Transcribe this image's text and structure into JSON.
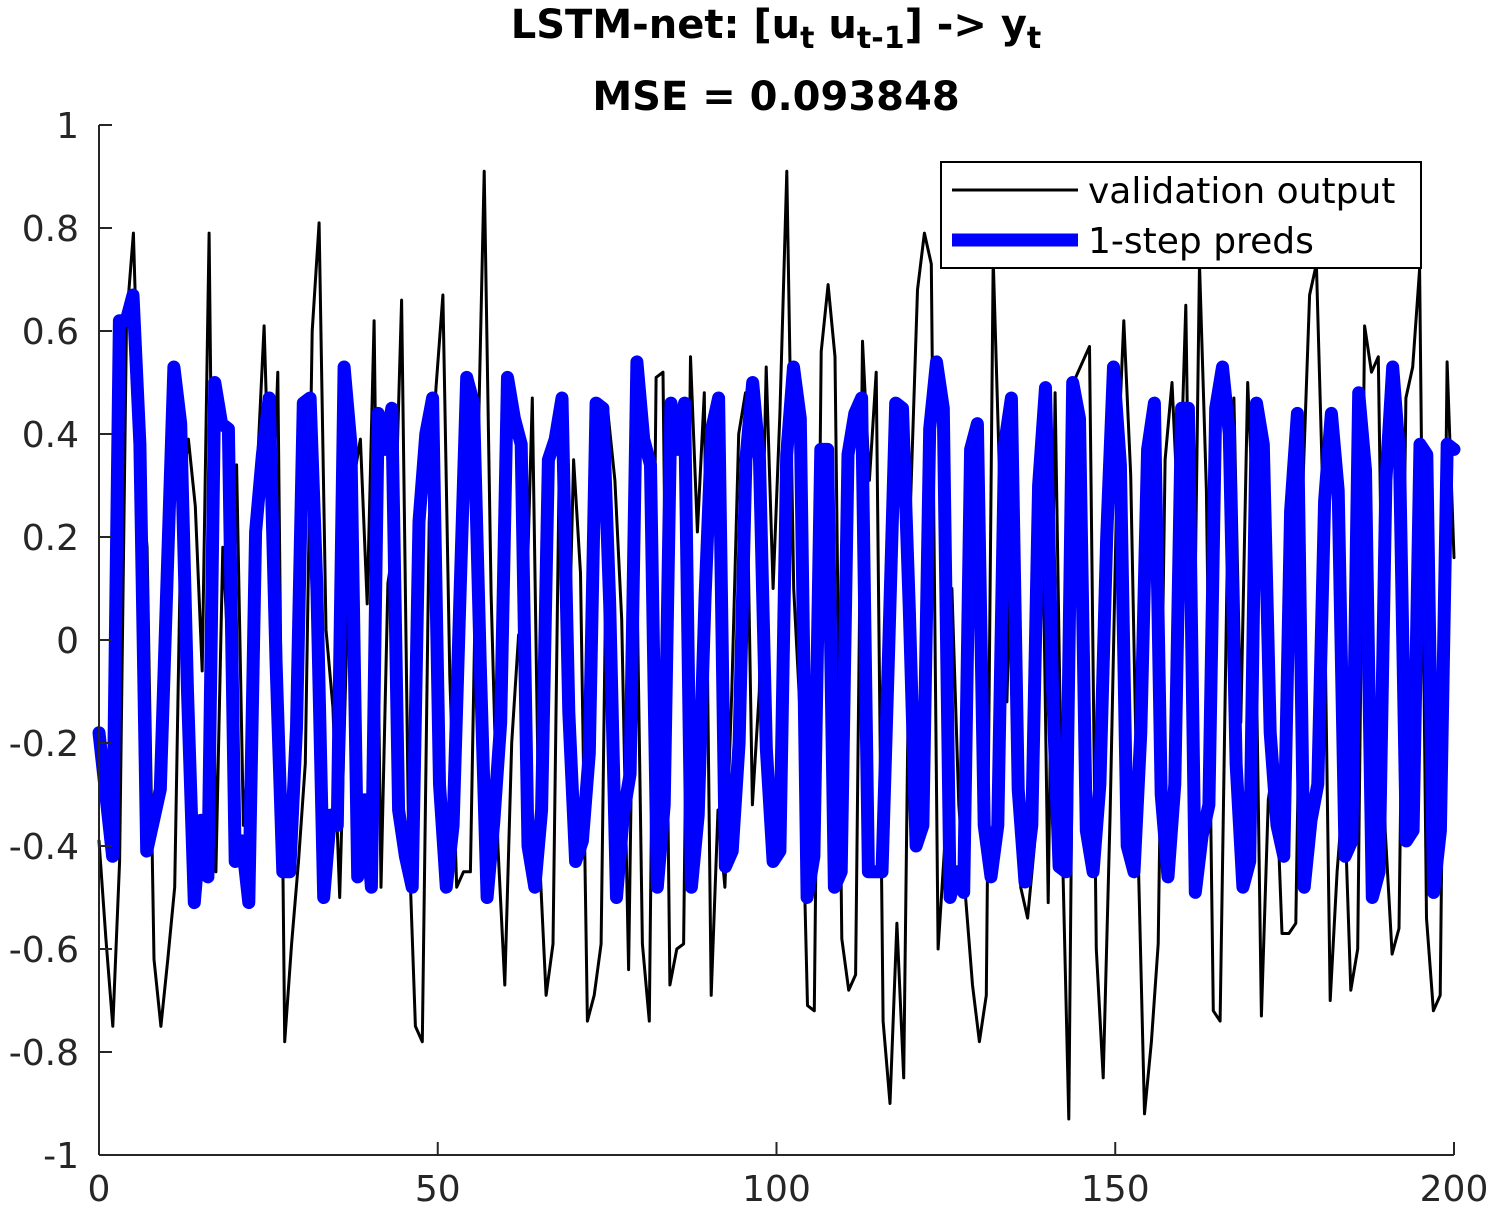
{
  "chart_data": {
    "type": "line",
    "title_main": "LSTM-net: [u",
    "title_sub_t": "t",
    "title_mid": " u",
    "title_sub_t1": "t-1",
    "title_end": "] -> y",
    "title_sub_y": "t",
    "subtitle": "MSE = 0.093848",
    "xlim": [
      0,
      200
    ],
    "ylim": [
      -1,
      1
    ],
    "x_ticks": [
      0,
      50,
      100,
      150,
      200
    ],
    "x_tick_labels": [
      "0",
      "50",
      "100",
      "150",
      "200"
    ],
    "y_ticks": [
      -1,
      -0.8,
      -0.6,
      -0.4,
      -0.2,
      0,
      0.2,
      0.4,
      0.6,
      0.8,
      1
    ],
    "y_tick_labels": [
      "-1",
      "-0.8",
      "-0.6",
      "-0.4",
      "-0.2",
      "0",
      "0.2",
      "0.4",
      "0.6",
      "0.8",
      "1"
    ],
    "grid": false,
    "legend_position": "top-right",
    "series": [
      {
        "name": "validation output",
        "color": "#000000",
        "values": [
          -0.39,
          -0.58,
          -0.75,
          -0.43,
          0.62,
          0.79,
          0.33,
          0.18,
          -0.62,
          -0.75,
          -0.62,
          -0.48,
          0.28,
          0.39,
          0.26,
          -0.06,
          0.79,
          -0.45,
          0.18,
          -0.08,
          0.34,
          -0.36,
          -0.16,
          0.33,
          0.61,
          0.16,
          0.52,
          -0.78,
          -0.59,
          -0.43,
          -0.24,
          0.6,
          0.81,
          0.02,
          -0.13,
          -0.5,
          -0.01,
          0.31,
          0.39,
          0.07,
          0.62,
          -0.48,
          0.11,
          0.2,
          0.66,
          -0.37,
          -0.75,
          -0.78,
          0.23,
          0.49,
          0.67,
          -0.07,
          -0.48,
          -0.45,
          -0.45,
          0.3,
          0.91,
          0.09,
          -0.4,
          -0.67,
          -0.2,
          0.01,
          -0.01,
          0.47,
          -0.41,
          -0.69,
          -0.59,
          0.42,
          -0.19,
          0.35,
          0.13,
          -0.74,
          -0.69,
          -0.59,
          0.44,
          0.31,
          0.04,
          -0.64,
          0.3,
          -0.59,
          -0.74,
          0.51,
          0.52,
          -0.67,
          -0.6,
          -0.59,
          0.55,
          0.21,
          0.48,
          -0.69,
          -0.33,
          -0.48,
          -0.1,
          0.4,
          0.48,
          -0.32,
          -0.1,
          0.53,
          0.1,
          0.44,
          0.91,
          0.1,
          -0.16,
          -0.71,
          -0.72,
          0.56,
          0.69,
          0.55,
          -0.58,
          -0.68,
          -0.65,
          0.58,
          0.31,
          0.52,
          -0.74,
          -0.9,
          -0.55,
          -0.85,
          0.27,
          0.68,
          0.79,
          0.73,
          -0.6,
          -0.39,
          0.1,
          -0.32,
          -0.5,
          -0.67,
          -0.78,
          -0.69,
          0.74,
          0.29,
          -0.12,
          0.41,
          -0.48,
          -0.54,
          -0.4,
          0.42,
          -0.51,
          0.48,
          -0.36,
          -0.93,
          0.51,
          0.54,
          0.57,
          -0.6,
          -0.85,
          -0.34,
          0.31,
          0.62,
          0.32,
          -0.37,
          -0.92,
          -0.78,
          -0.59,
          0.35,
          0.5,
          0.21,
          0.65,
          -0.27,
          0.73,
          0.29,
          -0.72,
          -0.74,
          0.12,
          0.47,
          -0.16,
          0.5,
          0.19,
          -0.73,
          -0.31,
          -0.22,
          -0.57,
          -0.57,
          -0.55,
          0.29,
          0.67,
          0.73,
          0.25,
          -0.7,
          -0.45,
          -0.28,
          -0.68,
          -0.6,
          0.61,
          0.52,
          0.55,
          -0.37,
          -0.61,
          -0.56,
          0.47,
          0.53,
          0.72,
          -0.54,
          -0.72,
          -0.69,
          0.54,
          0.16
        ]
      },
      {
        "name": "1-step preds",
        "color": "#0000ff",
        "values": [
          -0.18,
          -0.3,
          -0.42,
          0.62,
          0.62,
          0.67,
          0.38,
          -0.41,
          -0.35,
          -0.29,
          0.12,
          0.53,
          0.42,
          -0.1,
          -0.51,
          -0.35,
          -0.46,
          0.5,
          0.42,
          0.41,
          -0.43,
          -0.39,
          -0.51,
          0.21,
          0.36,
          0.47,
          -0.04,
          -0.45,
          -0.45,
          -0.17,
          0.46,
          0.47,
          0.1,
          -0.5,
          -0.34,
          -0.36,
          0.53,
          0.38,
          -0.46,
          -0.31,
          -0.48,
          0.44,
          0.37,
          0.45,
          -0.33,
          -0.42,
          -0.48,
          0.23,
          0.4,
          0.47,
          -0.28,
          -0.48,
          -0.36,
          0.08,
          0.51,
          0.46,
          -0.05,
          -0.5,
          -0.35,
          -0.16,
          0.51,
          0.43,
          0.38,
          -0.4,
          -0.48,
          -0.33,
          0.35,
          0.39,
          0.47,
          -0.14,
          -0.43,
          -0.39,
          -0.22,
          0.46,
          0.45,
          0.07,
          -0.5,
          -0.34,
          -0.26,
          0.54,
          0.39,
          0.34,
          -0.48,
          -0.32,
          0.46,
          0.37,
          0.46,
          -0.48,
          -0.34,
          0.08,
          0.41,
          0.47,
          -0.44,
          -0.41,
          -0.2,
          0.35,
          0.5,
          0.35,
          -0.21,
          -0.43,
          -0.41,
          0.36,
          0.53,
          0.43,
          -0.5,
          -0.42,
          0.37,
          0.37,
          -0.48,
          -0.45,
          0.36,
          0.44,
          0.47,
          -0.45,
          -0.45,
          -0.45,
          -0.01,
          0.46,
          0.45,
          0.06,
          -0.4,
          -0.36,
          0.41,
          0.54,
          0.45,
          -0.5,
          -0.45,
          -0.49,
          0.37,
          0.42,
          -0.36,
          -0.46,
          -0.36,
          0.38,
          0.47,
          -0.29,
          -0.47,
          -0.36,
          0.3,
          0.49,
          -0.08,
          -0.44,
          -0.45,
          0.5,
          0.43,
          -0.37,
          -0.45,
          -0.28,
          0.2,
          0.53,
          0.34,
          -0.4,
          -0.45,
          -0.18,
          0.37,
          0.46,
          -0.3,
          -0.46,
          -0.28,
          0.45,
          0.45,
          -0.49,
          -0.38,
          -0.32,
          0.45,
          0.53,
          0.4,
          -0.24,
          -0.48,
          -0.43,
          0.46,
          0.38,
          -0.18,
          -0.36,
          -0.42,
          0.25,
          0.44,
          -0.48,
          -0.35,
          -0.28,
          0.27,
          0.44,
          0.29,
          -0.42,
          -0.39,
          0.48,
          0.33,
          -0.5,
          -0.45,
          0.31,
          0.53,
          0.36,
          -0.39,
          -0.37,
          0.38,
          0.36,
          -0.49,
          -0.37,
          0.38,
          0.37
        ]
      }
    ]
  }
}
